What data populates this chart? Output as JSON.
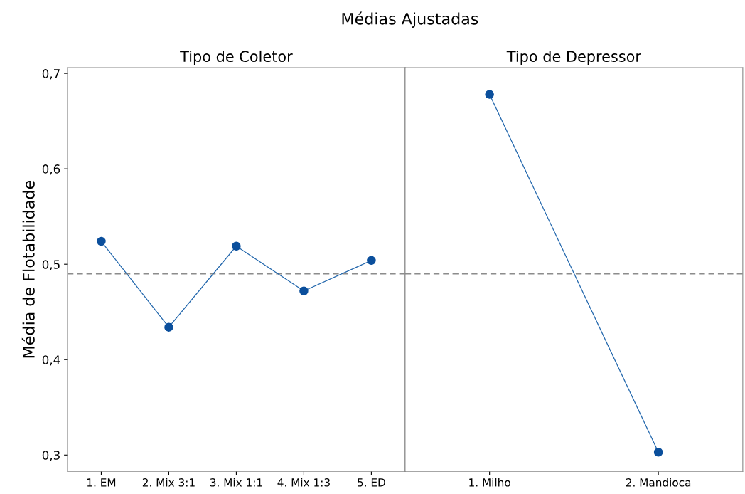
{
  "chart_data": [
    {
      "type": "line",
      "title": "Tipo de Coletor",
      "ylabel": "Média de Flotabilidade",
      "annotations": [
        "Médias Ajustadas"
      ],
      "categories": [
        "1. EM",
        "2. Mix 3:1",
        "3. Mix 1:1",
        "4. Mix 1:3",
        "5. ED"
      ],
      "series": [
        {
          "color": "#2166ac",
          "values": [
            0.524,
            0.434,
            0.519,
            0.472,
            0.504
          ]
        }
      ],
      "ylim": [
        0.283,
        0.706
      ],
      "yticks": [
        {
          "value": 0.3,
          "label": "0,3"
        },
        {
          "value": 0.4,
          "label": "0,4"
        },
        {
          "value": 0.5,
          "label": "0,5"
        },
        {
          "value": 0.6,
          "label": "0,6"
        },
        {
          "value": 0.7,
          "label": "0,7"
        }
      ],
      "ref_lines": [
        {
          "axis": "y",
          "value": 0.49,
          "color": "#8c8c8c",
          "line_style": "dashed"
        }
      ],
      "marker": "circle",
      "grid": false,
      "legend": false
    },
    {
      "type": "line",
      "title": "Tipo de Depressor",
      "categories": [
        "1. Milho",
        "2. Mandioca"
      ],
      "series": [
        {
          "color": "#2166ac",
          "values": [
            0.678,
            0.303
          ]
        }
      ],
      "ylim": [
        0.283,
        0.706
      ],
      "ref_lines": [
        {
          "axis": "y",
          "value": 0.49,
          "color": "#8c8c8c",
          "line_style": "dashed"
        }
      ],
      "marker": "circle",
      "grid": false,
      "legend": false,
      "tick_labels": "x"
    }
  ]
}
